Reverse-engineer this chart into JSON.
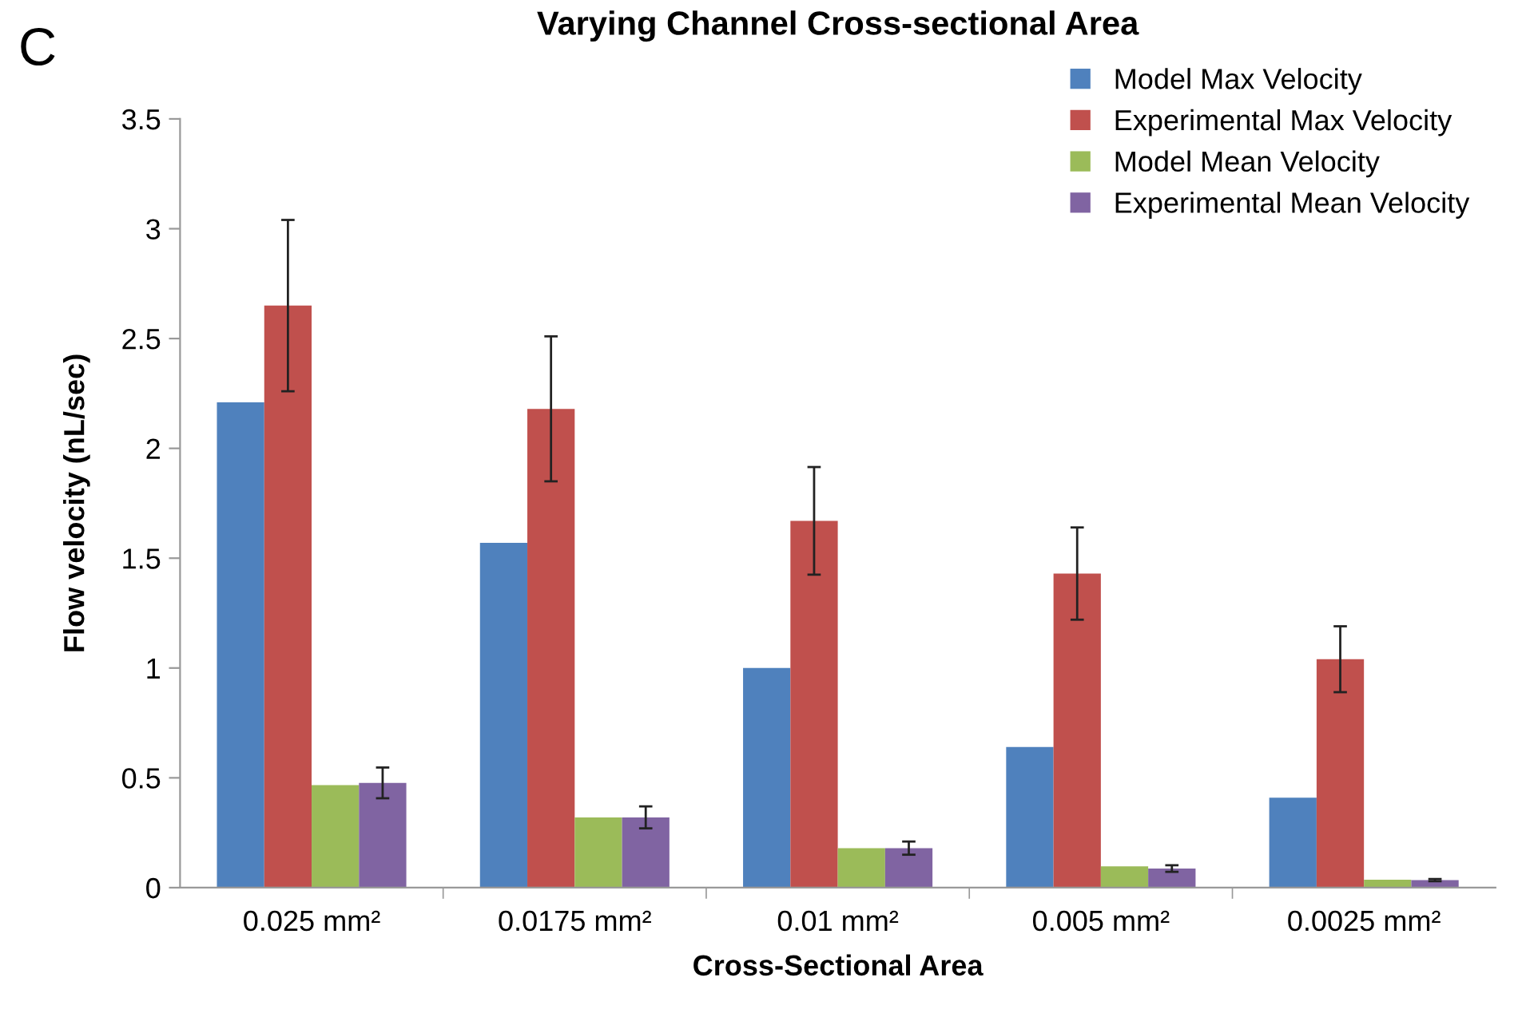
{
  "chart_data": {
    "type": "bar",
    "title": "Varying Channel Cross-sectional Area",
    "xlabel": "Cross-Sectional Area",
    "ylabel": "Flow velocity (nL/sec)",
    "annotations": [
      "C"
    ],
    "categories": [
      "0.025 mm²",
      "0.0175 mm²",
      "0.01 mm²",
      "0.005 mm²",
      "0.0025 mm²"
    ],
    "series": [
      {
        "name": "Model Max Velocity",
        "color": "#4f81bd",
        "values": [
          2.21,
          1.57,
          1.0,
          0.64,
          0.41
        ]
      },
      {
        "name": "Experimental Max Velocity",
        "color": "#c0504d",
        "values": [
          2.65,
          2.18,
          1.67,
          1.43,
          1.04
        ],
        "errors": [
          0.39,
          0.33,
          0.245,
          0.21,
          0.15
        ]
      },
      {
        "name": "Model Mean Velocity",
        "color": "#9bbb59",
        "values": [
          0.467,
          0.32,
          0.18,
          0.097,
          0.036
        ]
      },
      {
        "name": "Experimental Mean Velocity",
        "color": "#8064a2",
        "values": [
          0.477,
          0.32,
          0.18,
          0.087,
          0.034
        ],
        "errors": [
          0.07,
          0.05,
          0.03,
          0.015,
          0.005
        ]
      }
    ],
    "ylim": [
      0,
      3.5
    ],
    "yticks": [
      0,
      0.5,
      1,
      1.5,
      2,
      2.5,
      3,
      3.5
    ],
    "grid": false,
    "legend": "top right"
  }
}
